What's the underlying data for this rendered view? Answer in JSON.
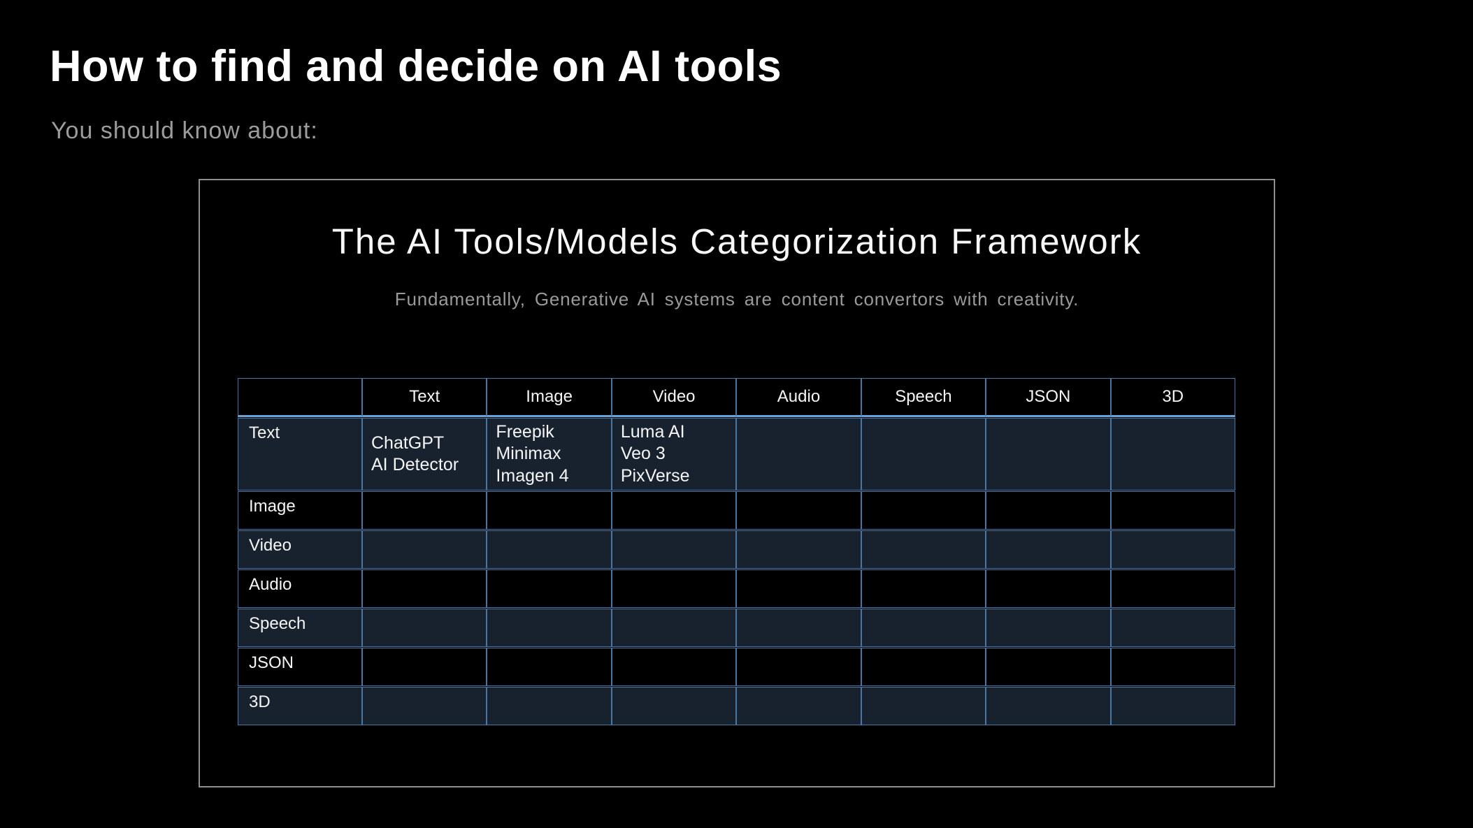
{
  "page": {
    "title": "How to find and decide on AI tools",
    "subtitle": "You should know about:"
  },
  "card": {
    "title": "The AI Tools/Models Categorization Framework",
    "subtitle": "Fundamentally, Generative AI systems are content convertors with creativity."
  },
  "matrix": {
    "corner_label": "",
    "column_headers": [
      "Text",
      "Image",
      "Video",
      "Audio",
      "Speech",
      "JSON",
      "3D"
    ],
    "rows": [
      {
        "label": "Text",
        "cells": [
          "ChatGPT\nAI Detector",
          "Freepik\nMinimax\nImagen 4",
          "Luma AI\nVeo 3\nPixVerse",
          "",
          "",
          "",
          ""
        ]
      },
      {
        "label": "Image",
        "cells": [
          "",
          "",
          "",
          "",
          "",
          "",
          ""
        ]
      },
      {
        "label": "Video",
        "cells": [
          "",
          "",
          "",
          "",
          "",
          "",
          ""
        ]
      },
      {
        "label": "Audio",
        "cells": [
          "",
          "",
          "",
          "",
          "",
          "",
          ""
        ]
      },
      {
        "label": "Speech",
        "cells": [
          "",
          "",
          "",
          "",
          "",
          "",
          ""
        ]
      },
      {
        "label": "JSON",
        "cells": [
          "",
          "",
          "",
          "",
          "",
          "",
          ""
        ]
      },
      {
        "label": "3D",
        "cells": [
          "",
          "",
          "",
          "",
          "",
          "",
          ""
        ]
      }
    ]
  },
  "colors": {
    "background": "#000000",
    "grid_line": "#4a76a4",
    "header_rule": "#6ca3d6",
    "row_tint": "#18222f",
    "card_border": "#8f8f8f",
    "muted_text": "#9c9c9c"
  }
}
